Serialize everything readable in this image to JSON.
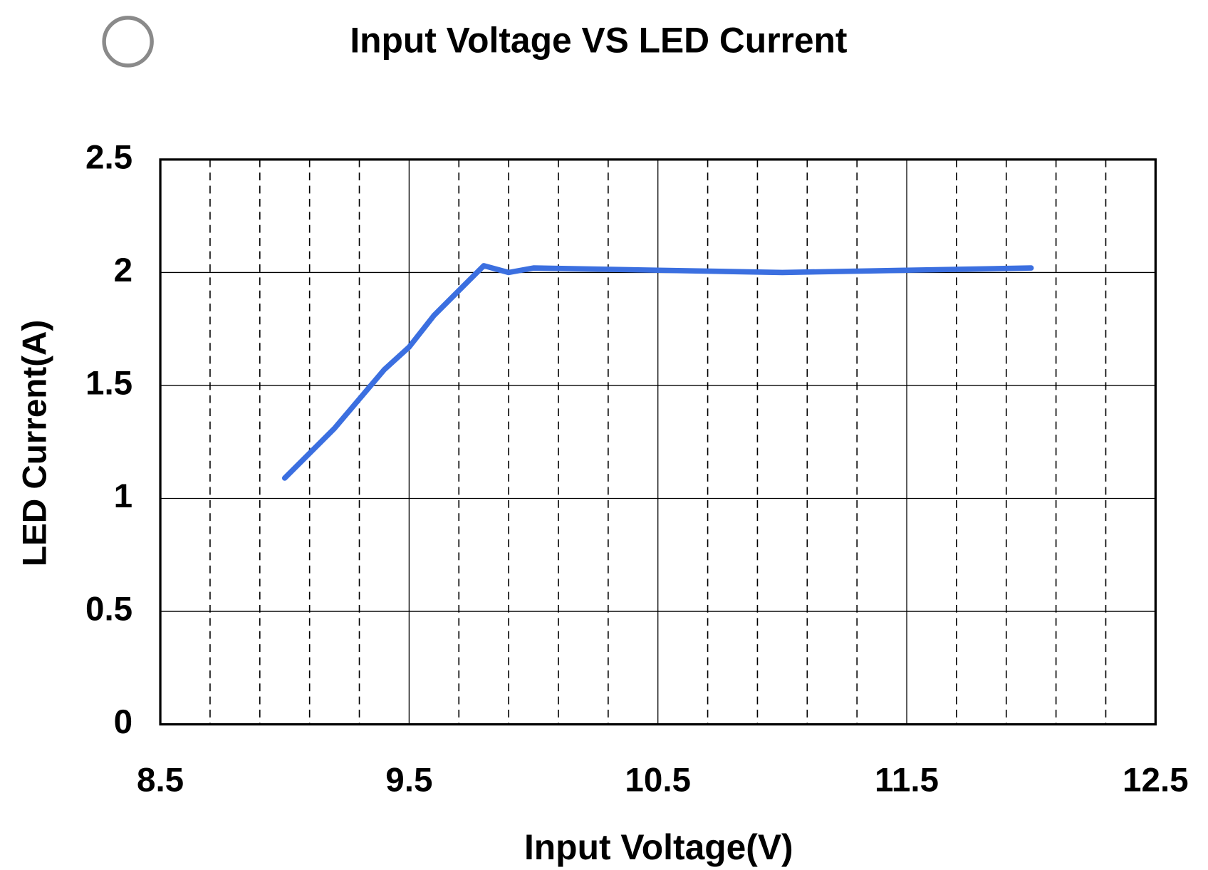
{
  "chart_data": {
    "type": "line",
    "title": "Input Voltage VS LED Current",
    "x_label": "Input Voltage(V)",
    "y_label": "LED Current(A)",
    "x": [
      9.0,
      9.2,
      9.4,
      9.5,
      9.6,
      9.8,
      9.9,
      10.0,
      10.5,
      11.0,
      11.5,
      12.0
    ],
    "series": [
      {
        "name": "LED Current",
        "color": "#3b6fe0",
        "values": [
          1.09,
          1.31,
          1.57,
          1.67,
          1.81,
          2.03,
          2.0,
          2.02,
          2.01,
          2.0,
          2.01,
          2.02
        ]
      }
    ],
    "xlim": [
      8.5,
      12.5
    ],
    "xticks": [
      8.5,
      9.5,
      10.5,
      11.5,
      12.5
    ],
    "xminorticks": [
      8.7,
      8.9,
      9.1,
      9.3,
      9.7,
      9.9,
      10.1,
      10.3,
      10.7,
      10.9,
      11.1,
      11.3,
      11.7,
      11.9,
      12.1,
      12.3
    ],
    "ylim": [
      0,
      2.5
    ],
    "yticks": [
      0,
      0.5,
      1,
      1.5,
      2,
      2.5
    ],
    "grid": true
  }
}
